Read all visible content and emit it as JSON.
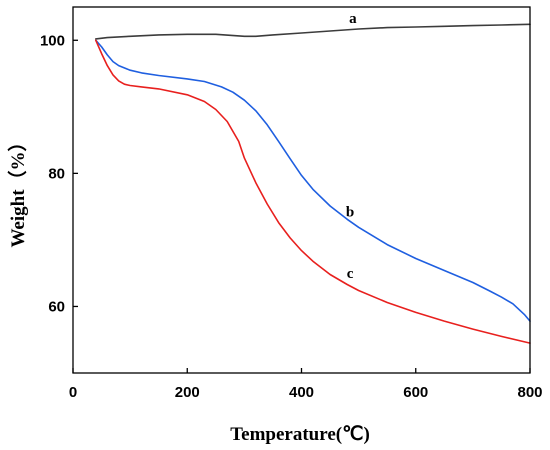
{
  "chart_data": {
    "type": "line",
    "xlabel": "Temperature(℃)",
    "ylabel": "Weight（%）",
    "xlim": [
      0,
      800
    ],
    "ylim": [
      50,
      105
    ],
    "xticks": [
      0,
      200,
      400,
      600,
      800
    ],
    "yticks": [
      60,
      80,
      100
    ],
    "grid": false,
    "series": [
      {
        "label": "a",
        "label_at": [
          490,
          102.6
        ],
        "color": "#3c3c3c",
        "x": [
          40,
          60,
          100,
          150,
          200,
          250,
          300,
          320,
          350,
          400,
          450,
          500,
          550,
          600,
          650,
          700,
          750,
          800
        ],
        "y": [
          100.2,
          100.4,
          100.6,
          100.8,
          100.9,
          100.9,
          100.6,
          100.6,
          100.8,
          101.1,
          101.4,
          101.7,
          101.9,
          102.0,
          102.1,
          102.2,
          102.3,
          102.4
        ]
      },
      {
        "label": "b",
        "label_at": [
          485,
          73.5
        ],
        "color": "#1f5fe0",
        "x": [
          40,
          50,
          60,
          70,
          80,
          100,
          120,
          150,
          200,
          230,
          260,
          280,
          300,
          320,
          340,
          360,
          380,
          400,
          420,
          450,
          480,
          500,
          550,
          600,
          650,
          700,
          730,
          750,
          770,
          790,
          800
        ],
        "y": [
          100,
          99.0,
          97.8,
          96.8,
          96.2,
          95.5,
          95.1,
          94.7,
          94.2,
          93.8,
          93.0,
          92.2,
          91.0,
          89.4,
          87.3,
          84.8,
          82.2,
          79.7,
          77.6,
          75.1,
          73.1,
          71.9,
          69.3,
          67.2,
          65.4,
          63.6,
          62.3,
          61.4,
          60.4,
          58.8,
          57.8
        ]
      },
      {
        "label": "c",
        "label_at": [
          485,
          64.3
        ],
        "color": "#e8201e",
        "x": [
          40,
          50,
          60,
          70,
          80,
          90,
          100,
          120,
          150,
          200,
          230,
          250,
          270,
          290,
          300,
          320,
          340,
          360,
          380,
          400,
          420,
          450,
          480,
          500,
          550,
          600,
          650,
          700,
          750,
          800
        ],
        "y": [
          100,
          98.0,
          96.2,
          94.8,
          93.9,
          93.4,
          93.2,
          93.0,
          92.7,
          91.8,
          90.8,
          89.6,
          87.8,
          84.8,
          82.3,
          78.6,
          75.4,
          72.6,
          70.3,
          68.4,
          66.8,
          64.8,
          63.3,
          62.4,
          60.6,
          59.1,
          57.8,
          56.6,
          55.5,
          54.5
        ]
      }
    ]
  }
}
